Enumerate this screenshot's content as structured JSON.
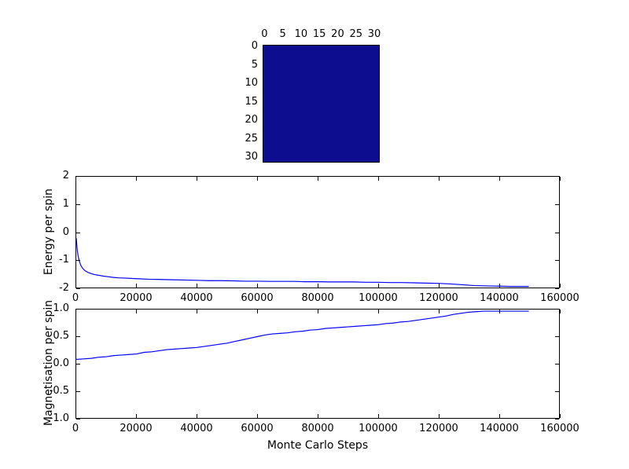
{
  "figure": {
    "background_color": "#ffffff",
    "axis_color": "#000000",
    "line_color": "#0000ff"
  },
  "chart_data": [
    {
      "id": "lattice",
      "type": "heatmap",
      "rows": 32,
      "cols": 32,
      "uniform": true,
      "cell_color": "#0d0d8f",
      "x_ticks": [
        0,
        5,
        10,
        15,
        20,
        25,
        30
      ],
      "x_tick_labels": [
        "0",
        "5",
        "10",
        "15",
        "20",
        "25",
        "30"
      ],
      "y_ticks": [
        0,
        5,
        10,
        15,
        20,
        25,
        30
      ],
      "y_tick_labels": [
        "0",
        "5",
        "10",
        "15",
        "20",
        "25",
        "30"
      ]
    },
    {
      "id": "energy",
      "type": "line",
      "ylabel": "Energy per spin",
      "xlim": [
        0,
        160000
      ],
      "ylim": [
        -2,
        2
      ],
      "x_ticks": [
        0,
        20000,
        40000,
        60000,
        80000,
        100000,
        120000,
        140000,
        160000
      ],
      "x_tick_labels": [
        "0",
        "20000",
        "40000",
        "60000",
        "80000",
        "100000",
        "120000",
        "140000",
        "160000"
      ],
      "y_ticks": [
        2,
        1,
        0,
        -1,
        -2
      ],
      "y_tick_labels": [
        "2",
        "1",
        "0",
        "-1",
        "-2"
      ],
      "grid": false,
      "series": [
        {
          "name": "energy",
          "color": "#0000ff",
          "points": [
            [
              0,
              -0.22
            ],
            [
              300,
              -0.62
            ],
            [
              600,
              -0.85
            ],
            [
              1000,
              -1.05
            ],
            [
              1500,
              -1.2
            ],
            [
              2000,
              -1.29
            ],
            [
              2500,
              -1.35
            ],
            [
              3000,
              -1.4
            ],
            [
              4000,
              -1.46
            ],
            [
              5000,
              -1.5
            ],
            [
              6000,
              -1.53
            ],
            [
              7000,
              -1.55
            ],
            [
              8000,
              -1.57
            ],
            [
              9000,
              -1.59
            ],
            [
              10000,
              -1.6
            ],
            [
              12000,
              -1.63
            ],
            [
              14000,
              -1.65
            ],
            [
              16000,
              -1.66
            ],
            [
              18000,
              -1.67
            ],
            [
              20000,
              -1.68
            ],
            [
              24000,
              -1.7
            ],
            [
              28000,
              -1.71
            ],
            [
              32000,
              -1.72
            ],
            [
              36000,
              -1.73
            ],
            [
              40000,
              -1.74
            ],
            [
              44000,
              -1.75
            ],
            [
              48000,
              -1.75
            ],
            [
              52000,
              -1.76
            ],
            [
              56000,
              -1.77
            ],
            [
              60000,
              -1.77
            ],
            [
              64000,
              -1.78
            ],
            [
              68000,
              -1.78
            ],
            [
              72000,
              -1.78
            ],
            [
              76000,
              -1.79
            ],
            [
              80000,
              -1.79
            ],
            [
              84000,
              -1.8
            ],
            [
              88000,
              -1.8
            ],
            [
              92000,
              -1.8
            ],
            [
              96000,
              -1.81
            ],
            [
              100000,
              -1.81
            ],
            [
              104000,
              -1.82
            ],
            [
              108000,
              -1.82
            ],
            [
              112000,
              -1.83
            ],
            [
              116000,
              -1.84
            ],
            [
              120000,
              -1.85
            ],
            [
              124000,
              -1.87
            ],
            [
              128000,
              -1.9
            ],
            [
              132000,
              -1.93
            ],
            [
              136000,
              -1.94
            ],
            [
              140000,
              -1.95
            ],
            [
              144000,
              -1.96
            ],
            [
              148000,
              -1.96
            ],
            [
              150000,
              -1.96
            ]
          ]
        }
      ]
    },
    {
      "id": "magnetisation",
      "type": "line",
      "ylabel": "Magnetisation per spin",
      "xlabel": "Monte Carlo Steps",
      "xlim": [
        0,
        160000
      ],
      "ylim": [
        -1,
        1
      ],
      "x_ticks": [
        0,
        20000,
        40000,
        60000,
        80000,
        100000,
        120000,
        140000,
        160000
      ],
      "x_tick_labels": [
        "0",
        "20000",
        "40000",
        "60000",
        "80000",
        "100000",
        "120000",
        "140000",
        "160000"
      ],
      "y_ticks": [
        1.0,
        0.5,
        0.0,
        -0.5,
        -1.0
      ],
      "y_tick_labels": [
        "1.0",
        "0.5",
        "0.0",
        "-0.5",
        "-1.0"
      ],
      "grid": false,
      "series": [
        {
          "name": "magnetisation",
          "color": "#0000ff",
          "points": [
            [
              0,
              0.08
            ],
            [
              2500,
              0.09
            ],
            [
              5000,
              0.1
            ],
            [
              7500,
              0.12
            ],
            [
              10000,
              0.13
            ],
            [
              12500,
              0.15
            ],
            [
              15000,
              0.16
            ],
            [
              17500,
              0.17
            ],
            [
              20000,
              0.18
            ],
            [
              22500,
              0.21
            ],
            [
              25000,
              0.22
            ],
            [
              27500,
              0.24
            ],
            [
              30000,
              0.26
            ],
            [
              32500,
              0.27
            ],
            [
              35000,
              0.28
            ],
            [
              37500,
              0.29
            ],
            [
              40000,
              0.3
            ],
            [
              42500,
              0.32
            ],
            [
              45000,
              0.34
            ],
            [
              47500,
              0.36
            ],
            [
              50000,
              0.38
            ],
            [
              52500,
              0.41
            ],
            [
              55000,
              0.44
            ],
            [
              57500,
              0.47
            ],
            [
              60000,
              0.5
            ],
            [
              62500,
              0.53
            ],
            [
              65000,
              0.55
            ],
            [
              67500,
              0.56
            ],
            [
              70000,
              0.57
            ],
            [
              72500,
              0.59
            ],
            [
              75000,
              0.6
            ],
            [
              77500,
              0.62
            ],
            [
              80000,
              0.63
            ],
            [
              82500,
              0.65
            ],
            [
              85000,
              0.66
            ],
            [
              87500,
              0.67
            ],
            [
              90000,
              0.68
            ],
            [
              92500,
              0.69
            ],
            [
              95000,
              0.7
            ],
            [
              97500,
              0.71
            ],
            [
              100000,
              0.72
            ],
            [
              102500,
              0.74
            ],
            [
              105000,
              0.75
            ],
            [
              107500,
              0.77
            ],
            [
              110000,
              0.78
            ],
            [
              112500,
              0.8
            ],
            [
              115000,
              0.82
            ],
            [
              117500,
              0.84
            ],
            [
              120000,
              0.86
            ],
            [
              122500,
              0.88
            ],
            [
              125000,
              0.91
            ],
            [
              127500,
              0.93
            ],
            [
              130000,
              0.95
            ],
            [
              132500,
              0.96
            ],
            [
              135000,
              0.97
            ],
            [
              137500,
              0.97
            ],
            [
              140000,
              0.97
            ],
            [
              142500,
              0.97
            ],
            [
              145000,
              0.97
            ],
            [
              147500,
              0.97
            ],
            [
              150000,
              0.97
            ]
          ]
        }
      ]
    }
  ]
}
